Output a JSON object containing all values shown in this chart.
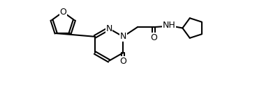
{
  "bg_color": "#ffffff",
  "line_color": "#000000",
  "line_width": 1.5,
  "font_size": 9,
  "figsize": [
    3.78,
    1.4
  ],
  "dpi": 100,
  "atoms": {
    "N_label": "N",
    "N2_label": "N",
    "O_furan_label": "O",
    "O_ketone_label": "O",
    "NH_label": "NH"
  }
}
